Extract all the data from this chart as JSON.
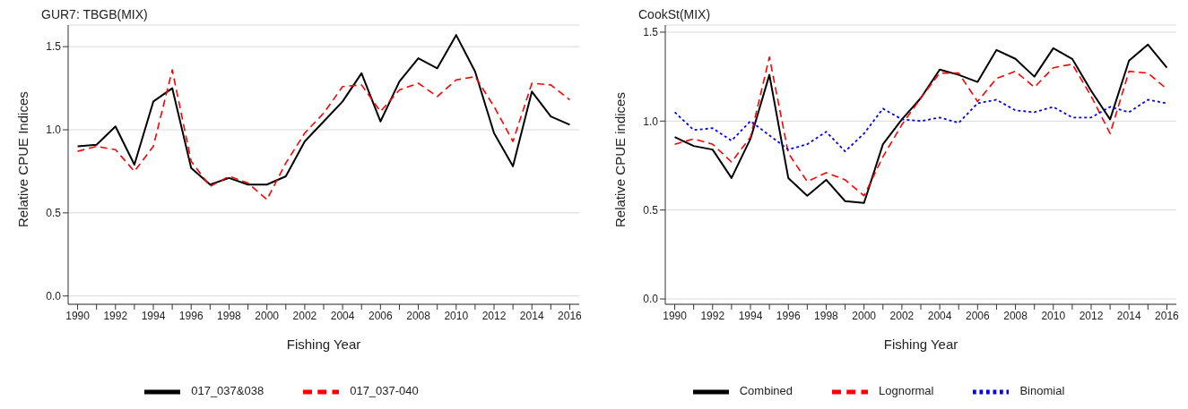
{
  "chart_data": [
    {
      "type": "line",
      "title": "GUR7: TBGB(MIX)",
      "xlabel": "Fishing Year",
      "ylabel": "Relative CPUE Indices",
      "x": [
        1990,
        1991,
        1992,
        1993,
        1994,
        1995,
        1996,
        1997,
        1998,
        1999,
        2000,
        2001,
        2002,
        2003,
        2004,
        2005,
        2006,
        2007,
        2008,
        2009,
        2010,
        2011,
        2012,
        2013,
        2014,
        2015,
        2016
      ],
      "series": [
        {
          "name": "017_037&038",
          "color": "#000000",
          "line_style": "solid",
          "values": [
            0.9,
            0.91,
            1.02,
            0.79,
            1.17,
            1.25,
            0.77,
            0.67,
            0.71,
            0.67,
            0.67,
            0.72,
            0.93,
            1.05,
            1.17,
            1.34,
            1.05,
            1.29,
            1.43,
            1.37,
            1.57,
            1.35,
            0.98,
            0.78,
            1.23,
            1.08,
            1.03
          ]
        },
        {
          "name": "017_037-040",
          "color": "#ff0000",
          "line_style": "dashed",
          "values": [
            0.87,
            0.9,
            0.88,
            0.75,
            0.9,
            1.36,
            0.81,
            0.66,
            0.72,
            0.68,
            0.58,
            0.8,
            0.98,
            1.1,
            1.26,
            1.27,
            1.11,
            1.24,
            1.28,
            1.2,
            1.3,
            1.32,
            1.14,
            0.93,
            1.28,
            1.27,
            1.18
          ]
        }
      ],
      "xlim": [
        1989.5,
        2016.5
      ],
      "xticks": [
        1990,
        {
          "value": 1991,
          "label": null
        },
        1992,
        {
          "value": 1993,
          "label": null
        },
        1994,
        {
          "value": 1995,
          "label": null
        },
        1996,
        {
          "value": 1997,
          "label": null
        },
        1998,
        {
          "value": 1999,
          "label": null
        },
        2000,
        {
          "value": 2001,
          "label": null
        },
        2002,
        {
          "value": 2003,
          "label": null
        },
        2004,
        {
          "value": 2005,
          "label": null
        },
        2006,
        {
          "value": 2007,
          "label": null
        },
        2008,
        {
          "value": 2009,
          "label": null
        },
        2010,
        {
          "value": 2011,
          "label": null
        },
        2012,
        {
          "value": 2013,
          "label": null
        },
        2014,
        {
          "value": 2015,
          "label": null
        },
        2016
      ],
      "ylim": [
        -0.05,
        1.63
      ],
      "yticks": [
        {
          "value": 0,
          "label": "0.0"
        },
        {
          "value": 0.5,
          "label": "0.5"
        },
        {
          "value": 1,
          "label": "1.0"
        },
        {
          "value": 1.5,
          "label": "1.5"
        }
      ],
      "grid": "y",
      "legend": "bottom",
      "marker": "none"
    },
    {
      "type": "line",
      "title": "CookSt(MIX)",
      "xlabel": "Fishing Year",
      "ylabel": "Relative CPUE indices",
      "x": [
        1990,
        1991,
        1992,
        1993,
        1994,
        1995,
        1996,
        1997,
        1998,
        1999,
        2000,
        2001,
        2002,
        2003,
        2004,
        2005,
        2006,
        2007,
        2008,
        2009,
        2010,
        2011,
        2012,
        2013,
        2014,
        2015,
        2016
      ],
      "series": [
        {
          "name": "Combined",
          "color": "#000000",
          "line_style": "solid",
          "values": [
            0.91,
            0.86,
            0.84,
            0.68,
            0.9,
            1.26,
            0.68,
            0.58,
            0.67,
            0.55,
            0.54,
            0.87,
            1.01,
            1.13,
            1.29,
            1.26,
            1.22,
            1.4,
            1.35,
            1.25,
            1.41,
            1.35,
            1.17,
            1.01,
            1.34,
            1.43,
            1.3
          ]
        },
        {
          "name": "Lognormal",
          "color": "#ff0000",
          "line_style": "dashed",
          "values": [
            0.87,
            0.9,
            0.87,
            0.77,
            0.91,
            1.36,
            0.82,
            0.66,
            0.71,
            0.67,
            0.58,
            0.8,
            0.98,
            1.13,
            1.27,
            1.27,
            1.11,
            1.24,
            1.28,
            1.19,
            1.3,
            1.32,
            1.14,
            0.93,
            1.28,
            1.27,
            1.18
          ]
        },
        {
          "name": "Binomial",
          "color": "#0000ff",
          "line_style": "dotted",
          "values": [
            1.05,
            0.95,
            0.96,
            0.89,
            1.0,
            0.92,
            0.84,
            0.87,
            0.94,
            0.83,
            0.93,
            1.07,
            1.01,
            1.0,
            1.02,
            0.99,
            1.1,
            1.12,
            1.06,
            1.05,
            1.08,
            1.02,
            1.02,
            1.08,
            1.05,
            1.12,
            1.1
          ]
        }
      ],
      "xlim": [
        1989.5,
        2016.5
      ],
      "xticks": [
        1990,
        {
          "value": 1991,
          "label": null
        },
        1992,
        {
          "value": 1993,
          "label": null
        },
        1994,
        {
          "value": 1995,
          "label": null
        },
        1996,
        {
          "value": 1997,
          "label": null
        },
        1998,
        {
          "value": 1999,
          "label": null
        },
        2000,
        {
          "value": 2001,
          "label": null
        },
        2002,
        {
          "value": 2003,
          "label": null
        },
        2004,
        {
          "value": 2005,
          "label": null
        },
        2006,
        {
          "value": 2007,
          "label": null
        },
        2008,
        {
          "value": 2009,
          "label": null
        },
        2010,
        {
          "value": 2011,
          "label": null
        },
        2012,
        {
          "value": 2013,
          "label": null
        },
        2014,
        {
          "value": 2015,
          "label": null
        },
        2016
      ],
      "ylim": [
        -0.03,
        1.54
      ],
      "yticks": [
        {
          "value": 0,
          "label": "0.0"
        },
        {
          "value": 0.5,
          "label": "0.5"
        },
        {
          "value": 1,
          "label": "1.0"
        },
        {
          "value": 1.5,
          "label": "1.5"
        }
      ],
      "grid": "y",
      "legend": "bottom",
      "marker": "none"
    }
  ]
}
